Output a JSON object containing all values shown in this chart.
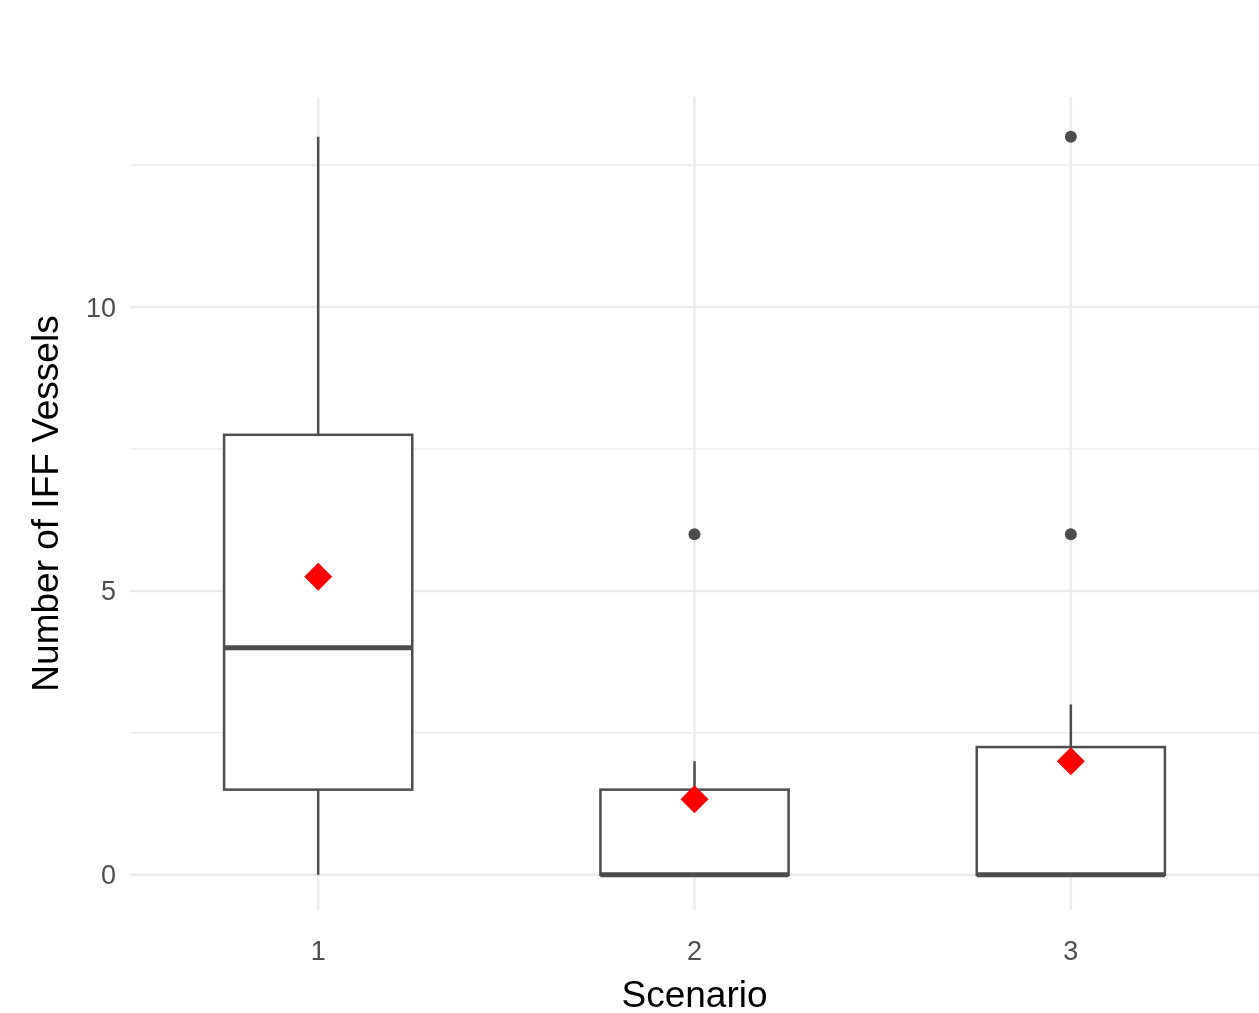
{
  "chart_data": {
    "type": "box",
    "xlabel": "Scenario",
    "ylabel": "Number of IFF Vessels",
    "categories": [
      "1",
      "2",
      "3"
    ],
    "series": [
      {
        "color": "#4d4d4d",
        "boxes": [
          {
            "low": 0,
            "q1": 1.5,
            "median": 4,
            "q3": 7.75,
            "high": 13,
            "mean": 5.25
          },
          {
            "low": 0,
            "q1": 0,
            "median": 0,
            "q3": 1.5,
            "high": 2,
            "mean": 1.33,
            "outliers": [
              6
            ]
          },
          {
            "low": 0,
            "q1": 0,
            "median": 0,
            "q3": 2.25,
            "high": 3,
            "mean": 2,
            "outliers": [
              6,
              13
            ]
          }
        ]
      }
    ],
    "ylim": [
      -0.62,
      13.7
    ],
    "yticks": [
      0,
      {
        "value": 2.5,
        "label": null
      },
      5,
      {
        "value": 7.5,
        "label": null
      },
      10,
      {
        "value": 12.5,
        "label": null
      }
    ],
    "grid": true
  }
}
